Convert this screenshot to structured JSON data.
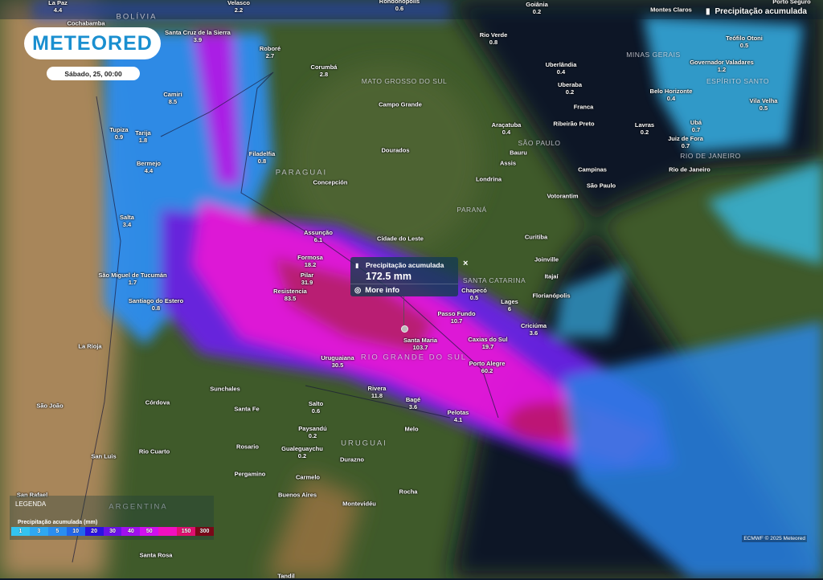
{
  "header": {
    "brand": "METEORED",
    "date": "Sábado, 25, 00:00",
    "layer_label": "Precipitação acumulada",
    "layer_icon": "rain-gauge-icon"
  },
  "popup": {
    "title": "Precipitação acumulada",
    "value": "172.5 mm",
    "more_info": "More info",
    "close": "×"
  },
  "legend": {
    "title": "LEGENDA",
    "subtitle": "Precipitação acumulada (mm)",
    "stops": [
      {
        "label": "1",
        "color": "#33c4f0"
      },
      {
        "label": "3",
        "color": "#2fa8f2"
      },
      {
        "label": "5",
        "color": "#2a8ef0"
      },
      {
        "label": "10",
        "color": "#2266ea"
      },
      {
        "label": "20",
        "color": "#2a12e0"
      },
      {
        "label": "30",
        "color": "#6a12e8"
      },
      {
        "label": "40",
        "color": "#a010ee"
      },
      {
        "label": "50",
        "color": "#d010ee"
      },
      {
        "label": "",
        "color": "#f010c0"
      },
      {
        "label": "150",
        "color": "#e01070"
      },
      {
        "label": "300",
        "color": "#7a0818"
      }
    ]
  },
  "credit": "ECMWF © 2025 Meteored",
  "regions": [
    "BOLÍVIA",
    "PARAGUAI",
    "MATO GROSSO DO SUL",
    "MINAS GERAIS",
    "ESPÍRITO SANTO",
    "SÃO PAULO",
    "RIO DE JANEIRO",
    "PARANÁ",
    "SANTA CATARINA",
    "RIO GRANDE DO SUL",
    "URUGUAI",
    "ARGENTINA"
  ],
  "cities": [
    {
      "name": "La Paz",
      "value": "4.4"
    },
    {
      "name": "Velasco",
      "value": "2.2"
    },
    {
      "name": "Rondonópolis",
      "value": "0.6"
    },
    {
      "name": "Goiânia",
      "value": "0.2"
    },
    {
      "name": "Montes Claros",
      "value": ""
    },
    {
      "name": "Porto Seguro",
      "value": ""
    },
    {
      "name": "Cochabamba",
      "value": ""
    },
    {
      "name": "Santa Cruz de la Sierra",
      "value": "3.9"
    },
    {
      "name": "Roboré",
      "value": "2.7"
    },
    {
      "name": "Corumbá",
      "value": "2.8"
    },
    {
      "name": "Rio Verde",
      "value": "0.8"
    },
    {
      "name": "Teófilo Otoni",
      "value": "0.5"
    },
    {
      "name": "Uberlândia",
      "value": "0.4"
    },
    {
      "name": "Governador Valadares",
      "value": "1.2"
    },
    {
      "name": "Uberaba",
      "value": "0.2"
    },
    {
      "name": "Belo Horizonte",
      "value": "0.4"
    },
    {
      "name": "Vila Velha",
      "value": "0.5"
    },
    {
      "name": "Franca",
      "value": ""
    },
    {
      "name": "Camiri",
      "value": "8.5"
    },
    {
      "name": "Campo Grande",
      "value": ""
    },
    {
      "name": "Araçatuba",
      "value": "0.4"
    },
    {
      "name": "Ribeirão Preto",
      "value": ""
    },
    {
      "name": "Lavras",
      "value": "0.2"
    },
    {
      "name": "Ubá",
      "value": "0.7"
    },
    {
      "name": "Juiz de Fora",
      "value": "0.7"
    },
    {
      "name": "Tupiza",
      "value": "0.9"
    },
    {
      "name": "Tarija",
      "value": "1.8"
    },
    {
      "name": "Bauru",
      "value": ""
    },
    {
      "name": "Dourados",
      "value": ""
    },
    {
      "name": "Bermejo",
      "value": "4.4"
    },
    {
      "name": "Filadelfia",
      "value": "0.8"
    },
    {
      "name": "Assis",
      "value": ""
    },
    {
      "name": "Campinas",
      "value": ""
    },
    {
      "name": "Rio de Janeiro",
      "value": ""
    },
    {
      "name": "São Paulo",
      "value": ""
    },
    {
      "name": "Londrina",
      "value": ""
    },
    {
      "name": "Concepción",
      "value": ""
    },
    {
      "name": "Votorantim",
      "value": ""
    },
    {
      "name": "Salta",
      "value": "3.4"
    },
    {
      "name": "Curitiba",
      "value": ""
    },
    {
      "name": "Assunção",
      "value": "6.1"
    },
    {
      "name": "Cidade do Leste",
      "value": ""
    },
    {
      "name": "Joinville",
      "value": ""
    },
    {
      "name": "Formosa",
      "value": "18.2"
    },
    {
      "name": "Pilar",
      "value": "31.9"
    },
    {
      "name": "Itajaí",
      "value": ""
    },
    {
      "name": "Chapecó",
      "value": "0.5"
    },
    {
      "name": "Resistencia",
      "value": "83.5"
    },
    {
      "name": "Florianópolis",
      "value": ""
    },
    {
      "name": "Lages",
      "value": "6"
    },
    {
      "name": "São Miguel de Tucumán",
      "value": "1.7"
    },
    {
      "name": "Santiago do Estero",
      "value": "0.8"
    },
    {
      "name": "Passo Fundo",
      "value": "10.7"
    },
    {
      "name": "Criciúma",
      "value": "3.6"
    },
    {
      "name": "Caxias do Sul",
      "value": "19.7"
    },
    {
      "name": "La Rioja",
      "value": ""
    },
    {
      "name": "Uruguaiana",
      "value": "30.5"
    },
    {
      "name": "Santa Maria",
      "value": "103.7"
    },
    {
      "name": "Porto Alegre",
      "value": "60.2"
    },
    {
      "name": "Rivera",
      "value": "11.8"
    },
    {
      "name": "Sunchales",
      "value": ""
    },
    {
      "name": "Córdova",
      "value": ""
    },
    {
      "name": "Salto",
      "value": "0.6"
    },
    {
      "name": "Bagé",
      "value": "3.6"
    },
    {
      "name": "Pelotas",
      "value": "4.1"
    },
    {
      "name": "São João",
      "value": ""
    },
    {
      "name": "Santa Fe",
      "value": ""
    },
    {
      "name": "Melo",
      "value": ""
    },
    {
      "name": "Paysandú",
      "value": "0.2"
    },
    {
      "name": "Gualeguaychu",
      "value": "0.2"
    },
    {
      "name": "Rosario",
      "value": ""
    },
    {
      "name": "San Luis",
      "value": ""
    },
    {
      "name": "Rio Cuarto",
      "value": ""
    },
    {
      "name": "Durazno",
      "value": ""
    },
    {
      "name": "Pergamino",
      "value": ""
    },
    {
      "name": "Carmelo",
      "value": ""
    },
    {
      "name": "San Rafael",
      "value": ""
    },
    {
      "name": "Buenos Aires",
      "value": ""
    },
    {
      "name": "Montevidéu",
      "value": ""
    },
    {
      "name": "Rocha",
      "value": ""
    },
    {
      "name": "Santa Rosa",
      "value": ""
    },
    {
      "name": "Tandil",
      "value": ""
    }
  ]
}
